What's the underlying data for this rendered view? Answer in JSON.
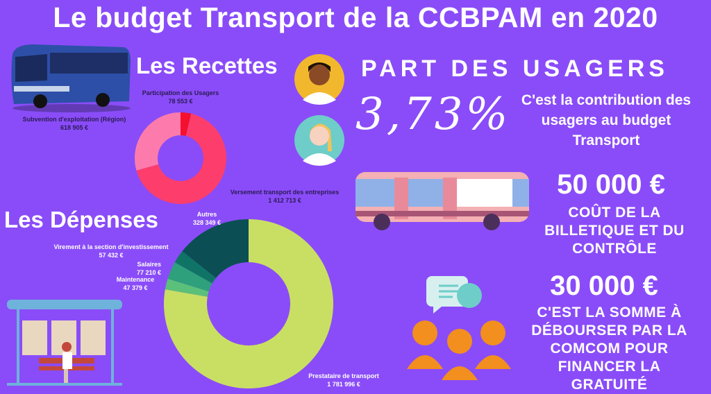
{
  "title": "Le budget Transport de la CCBPAM en 2020",
  "recettes_title": "Les Recettes",
  "depenses_title": "Les Dépenses",
  "part": {
    "heading": "PART DES USAGERS",
    "percent": "3,73%",
    "text": "C'est la contribution des usagers au budget Transport"
  },
  "billetique": {
    "amount": "50 000 €",
    "text": "COÛT DE LA BILLETIQUE ET DU CONTRÔLE"
  },
  "gratuite": {
    "amount": "30 000 €",
    "text": "C'EST LA SOMME À DÉBOURSER PAR LA COMCOM POUR FINANCER LA GRATUITÉ"
  },
  "chart_data": [
    {
      "type": "pie",
      "title": "Les Recettes",
      "categories": [
        "Participation des Usagers",
        "Versement transport des entreprises",
        "Subvention d'exploitation (Région)"
      ],
      "values": [
        78553,
        1412713,
        618905
      ],
      "value_labels": [
        "78 553 €",
        "1 412 713 €",
        "618 905 €"
      ],
      "colors": [
        "#f5102f",
        "#fd3d6c",
        "#fd7bac"
      ]
    },
    {
      "type": "pie",
      "title": "Les Dépenses",
      "categories": [
        "Prestataire de transport",
        "Maintenance",
        "Salaires",
        "Virement à la section d'investissement",
        "Autres"
      ],
      "values": [
        1781996,
        47379,
        77210,
        57432,
        328349
      ],
      "value_labels": [
        "1 781 996 €",
        "47 379 €",
        "77 210 €",
        "57 432 €",
        "328 349 €"
      ],
      "colors": [
        "#c9df63",
        "#5bc07a",
        "#2ea07c",
        "#0f7466",
        "#0b4f55"
      ]
    }
  ]
}
